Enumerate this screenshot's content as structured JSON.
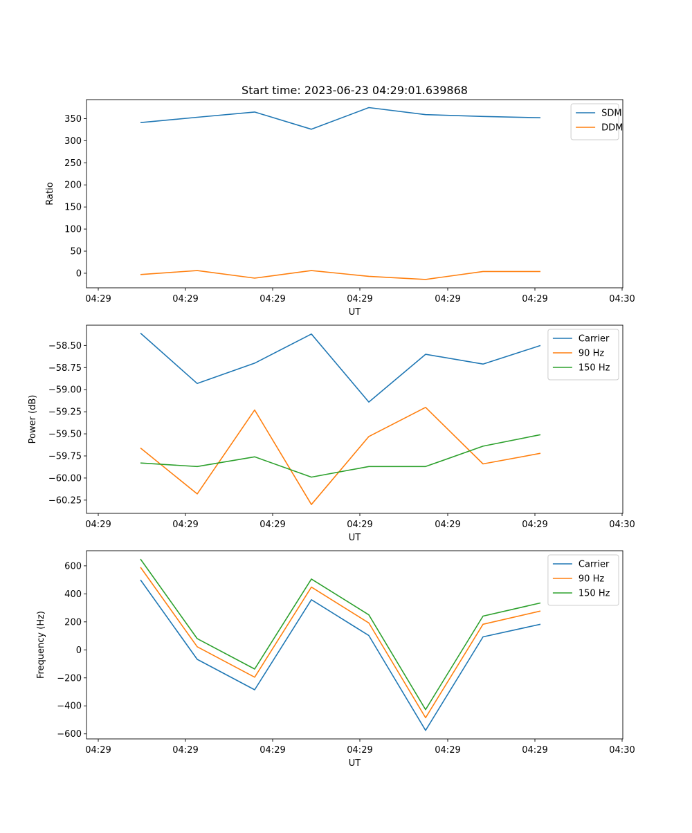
{
  "figure": {
    "title": "Start time: 2023-06-23 04:29:01.639868"
  },
  "chart_data": [
    {
      "type": "line",
      "title": "Start time: 2023-06-23 04:29:01.639868",
      "xlabel": "UT",
      "ylabel": "Ratio",
      "x_tick_labels": [
        "04:29",
        "04:29",
        "04:29",
        "04:29",
        "04:29",
        "04:29",
        "04:30"
      ],
      "y_ticks": [
        0,
        50,
        100,
        150,
        200,
        250,
        300,
        350
      ],
      "ylim": [
        -33,
        393
      ],
      "legend_position": "upper-right",
      "series": [
        {
          "name": "SDM",
          "color": "#1f77b4",
          "values": [
            341,
            353,
            365,
            326,
            375,
            359,
            355,
            352
          ]
        },
        {
          "name": "DDM",
          "color": "#ff7f0e",
          "values": [
            -3,
            6,
            -11,
            6,
            -7,
            -14,
            4,
            4
          ]
        }
      ]
    },
    {
      "type": "line",
      "title": "",
      "xlabel": "UT",
      "ylabel": "Power (dB)",
      "x_tick_labels": [
        "04:29",
        "04:29",
        "04:29",
        "04:29",
        "04:29",
        "04:29",
        "04:30"
      ],
      "y_ticks": [
        -60.25,
        -60.0,
        -59.75,
        -59.5,
        -59.25,
        -59.0,
        -58.75,
        -58.5
      ],
      "y_tick_labels": [
        "−60.25",
        "−60.00",
        "−59.75",
        "−59.50",
        "−59.25",
        "−59.00",
        "−58.75",
        "−58.50"
      ],
      "ylim": [
        -60.4,
        -58.27
      ],
      "legend_position": "upper-right",
      "series": [
        {
          "name": "Carrier",
          "color": "#1f77b4",
          "values": [
            -58.36,
            -58.93,
            -58.7,
            -58.37,
            -59.14,
            -58.6,
            -58.71,
            -58.5
          ]
        },
        {
          "name": "90 Hz",
          "color": "#ff7f0e",
          "values": [
            -59.66,
            -60.18,
            -59.23,
            -60.3,
            -59.53,
            -59.2,
            -59.84,
            -59.72
          ]
        },
        {
          "name": "150 Hz",
          "color": "#2ca02c",
          "values": [
            -59.83,
            -59.87,
            -59.76,
            -59.99,
            -59.87,
            -59.87,
            -59.64,
            -59.51
          ]
        }
      ]
    },
    {
      "type": "line",
      "title": "",
      "xlabel": "UT",
      "ylabel": "Frequency (Hz)",
      "x_tick_labels": [
        "04:29",
        "04:29",
        "04:29",
        "04:29",
        "04:29",
        "04:29",
        "04:30"
      ],
      "y_ticks": [
        -600,
        -400,
        -200,
        0,
        200,
        400,
        600
      ],
      "y_tick_labels": [
        "−600",
        "−400",
        "−200",
        "0",
        "200",
        "400",
        "600"
      ],
      "ylim": [
        -636,
        708
      ],
      "legend_position": "upper-right",
      "series": [
        {
          "name": "Carrier",
          "color": "#1f77b4",
          "values": [
            500,
            -68,
            -285,
            358,
            102,
            -575,
            93,
            183
          ]
        },
        {
          "name": "90 Hz",
          "color": "#ff7f0e",
          "values": [
            590,
            22,
            -195,
            448,
            192,
            -485,
            183,
            277
          ]
        },
        {
          "name": "150 Hz",
          "color": "#2ca02c",
          "values": [
            648,
            80,
            -137,
            506,
            250,
            -427,
            241,
            335
          ]
        }
      ]
    }
  ]
}
